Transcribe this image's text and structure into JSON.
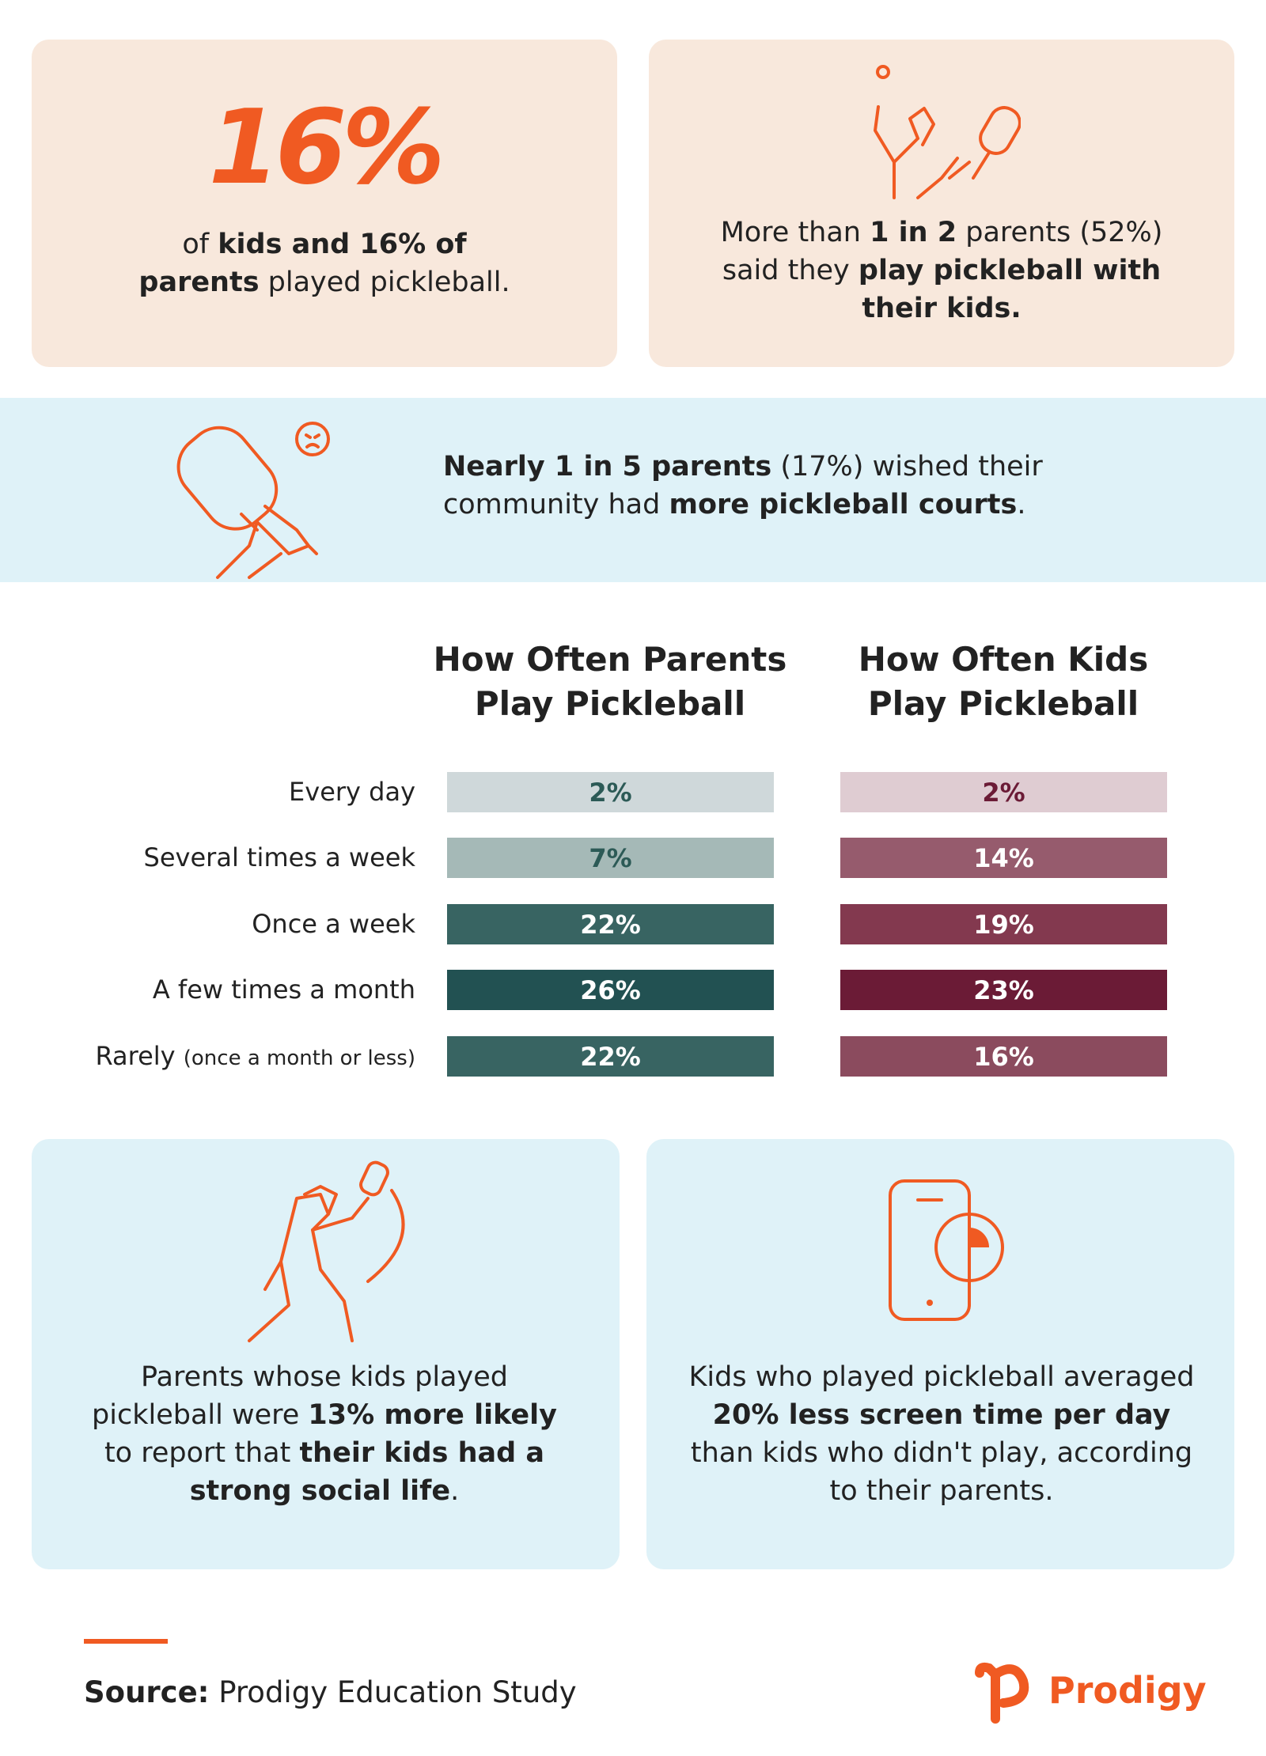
{
  "stat_kids_parents": {
    "headline": "16%",
    "text": [
      {
        "text": "of ",
        "bold": false
      },
      {
        "text": "kids and 16% of parents",
        "bold": true
      },
      {
        "text": " played pickleball.",
        "bold": false
      }
    ]
  },
  "stat_play_with_kids": {
    "text": [
      {
        "text": "More than ",
        "bold": false
      },
      {
        "text": "1 in 2",
        "bold": true
      },
      {
        "text": " parents (52%) said they ",
        "bold": false
      },
      {
        "text": "play pickleball with their kids.",
        "bold": true
      }
    ]
  },
  "banner": {
    "text": [
      {
        "text": "Nearly 1 in 5 parents",
        "bold": true
      },
      {
        "text": " (17%) wished their community had ",
        "bold": false
      },
      {
        "text": "more pickleball courts",
        "bold": true
      },
      {
        "text": ".",
        "bold": false
      }
    ]
  },
  "frequency_table": {
    "columns": [
      "How Often Parents Play Pickleball",
      "How Often Kids Play Pickleball"
    ],
    "rows": [
      {
        "label": "Every day",
        "parents": "2%",
        "kids": "2%"
      },
      {
        "label": "Several times a week",
        "parents": "7%",
        "kids": "14%"
      },
      {
        "label": "Once a week",
        "parents": "22%",
        "kids": "19%"
      },
      {
        "label": "A few times a month",
        "parents": "26%",
        "kids": "23%"
      },
      {
        "label": "Rarely",
        "note": "(once a month or less)",
        "parents": "22%",
        "kids": "16%"
      }
    ],
    "parents_colors": [
      "#cfd8da",
      "#a5b9b7",
      "#386462",
      "#225152",
      "#386462"
    ],
    "parents_text_colors": [
      "#2c5a56",
      "#2c5a56",
      "#ffffff",
      "#ffffff",
      "#ffffff"
    ],
    "kids_colors": [
      "#dfccd2",
      "#965b6d",
      "#83394f",
      "#6b1b36",
      "#8b4b5e"
    ],
    "kids_text_colors": [
      "#6b1b36",
      "#ffffff",
      "#ffffff",
      "#ffffff",
      "#ffffff"
    ]
  },
  "stat_social_life": {
    "text": [
      {
        "text": "Parents whose kids played pickleball were ",
        "bold": false
      },
      {
        "text": "13% more likely",
        "bold": true
      },
      {
        "text": " to report that ",
        "bold": false
      },
      {
        "text": "their kids had a strong social life",
        "bold": true
      },
      {
        "text": ".",
        "bold": false
      }
    ]
  },
  "stat_screen_time": {
    "text": [
      {
        "text": "Kids who played pickleball averaged ",
        "bold": false
      },
      {
        "text": "20% less screen time per day",
        "bold": true
      },
      {
        "text": " than kids who didn't play, according to their parents.",
        "bold": false
      }
    ]
  },
  "source": {
    "label": "Source:",
    "text": "Prodigy Education Study"
  },
  "logo": "Prodigy"
}
